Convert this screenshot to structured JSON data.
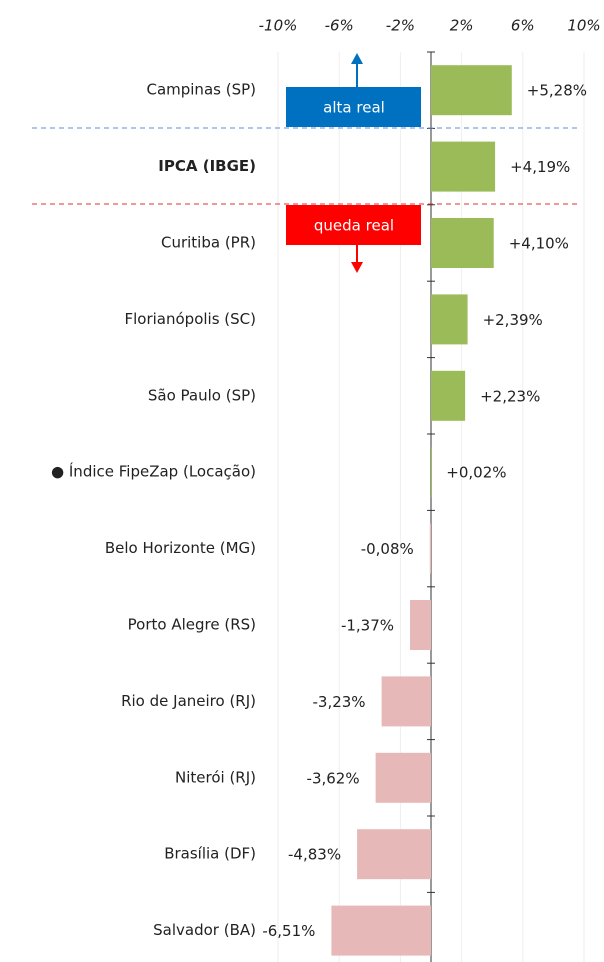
{
  "chart_data": {
    "type": "bar",
    "orientation": "horizontal",
    "categories": [
      "Campinas (SP)",
      "IPCA (IBGE)",
      "Curitiba (PR)",
      "Florianópolis (SC)",
      "São Paulo (SP)",
      "● Índice FipeZap (Locação)",
      "Belo Horizonte (MG)",
      "Porto Alegre (RS)",
      "Rio de Janeiro (RJ)",
      "Niterói (RJ)",
      "Brasília (DF)",
      "Salvador (BA)"
    ],
    "values": [
      5.28,
      4.19,
      4.1,
      2.39,
      2.23,
      0.02,
      -0.08,
      -1.37,
      -3.23,
      -3.62,
      -4.83,
      -6.51
    ],
    "value_labels": [
      "+5,28%",
      "+4,19%",
      "+4,10%",
      "+2,39%",
      "+2,23%",
      "+0,02%",
      "-0,08%",
      "-1,37%",
      "-3,23%",
      "-3,62%",
      "-4,83%",
      "-6,51%"
    ],
    "positive_color": "#9bbb59",
    "negative_color": "#e6b9b8",
    "highlight_index": 1,
    "xlim": [
      -10,
      10
    ],
    "xticks": [
      {
        "value": -10,
        "label": "-10%"
      },
      {
        "value": -6,
        "label": "-6%"
      },
      {
        "value": -2,
        "label": "-2%"
      },
      {
        "value": 2,
        "label": "2%"
      },
      {
        "value": 6,
        "label": "6%"
      },
      {
        "value": 10,
        "label": "10%"
      }
    ],
    "grid": true,
    "annotations": [
      {
        "text": "alta real",
        "color": "#0070c0"
      },
      {
        "text": "queda real",
        "color": "#ff0000"
      }
    ]
  }
}
